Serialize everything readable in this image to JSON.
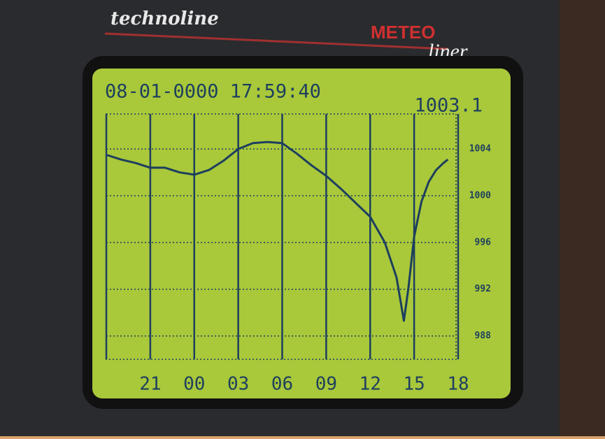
{
  "device": {
    "brand": "technoline",
    "model": "METEO",
    "model_suffix": "liner"
  },
  "chart_data": {
    "type": "line",
    "title": "08-01-0000 17:59:40",
    "annotation": "1003.1",
    "x": [
      0,
      1,
      2,
      3,
      4,
      5,
      6,
      7,
      8,
      9,
      10,
      11,
      12,
      13,
      14,
      15,
      16,
      17,
      18,
      19,
      19.8,
      20.3,
      20.6,
      21,
      21.5,
      22,
      22.5,
      23,
      23.3
    ],
    "series": [
      {
        "color": "#1d3f5e",
        "values": [
          1003.5,
          1003.1,
          1002.8,
          1002.4,
          1002.4,
          1002.0,
          1001.8,
          1002.2,
          1003.0,
          1004.0,
          1004.5,
          1004.6,
          1004.5,
          1003.6,
          1002.6,
          1001.7,
          1000.6,
          999.4,
          998.2,
          996,
          993,
          989.3,
          992,
          996.5,
          999.5,
          1001.2,
          1002.2,
          1002.8,
          1003.1
        ]
      }
    ],
    "xlim": [
      0,
      24
    ],
    "xticks": [
      {
        "value": 3,
        "label": "21"
      },
      {
        "value": 6,
        "label": "00"
      },
      {
        "value": 9,
        "label": "03"
      },
      {
        "value": 12,
        "label": "06"
      },
      {
        "value": 15,
        "label": "09"
      },
      {
        "value": 18,
        "label": "12"
      },
      {
        "value": 21,
        "label": "15"
      },
      {
        "value": 24,
        "label": "18"
      }
    ],
    "ylim": [
      986,
      1007
    ],
    "yticks": [
      988,
      992,
      996,
      1000,
      1004
    ],
    "grid": true
  }
}
